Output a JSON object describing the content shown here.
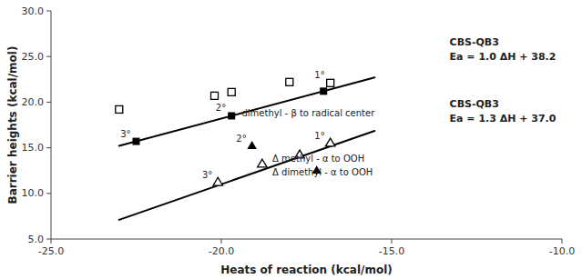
{
  "chart_data": {
    "type": "scatter",
    "xlabel": "Heats of reaction (kcal/mol)",
    "ylabel": "Barrier heights (kcal/mol)",
    "xlim": [
      -25.0,
      -10.0
    ],
    "ylim": [
      5.0,
      30.0
    ],
    "xticks": [
      {
        "value": -25.0,
        "label": "-25.0"
      },
      {
        "value": -20.0,
        "label": "-20.0"
      },
      {
        "value": -15.0,
        "label": "-15.0"
      },
      {
        "value": -10.0,
        "label": "-10.0"
      }
    ],
    "yticks": [
      {
        "value": 5.0,
        "label": "5.0"
      },
      {
        "value": 10.0,
        "label": "10.0"
      },
      {
        "value": 15.0,
        "label": "15.0"
      },
      {
        "value": 20.0,
        "label": "20.0"
      },
      {
        "value": 25.0,
        "label": "25.0"
      },
      {
        "value": 30.0,
        "label": "30.0"
      }
    ],
    "grid": false,
    "series": [
      {
        "type": "line",
        "color": "black",
        "line_style": "solid",
        "x": [
          -23.0,
          -15.5
        ],
        "values": [
          15.2,
          22.7
        ]
      },
      {
        "type": "line",
        "color": "black",
        "line_style": "solid",
        "x": [
          -23.0,
          -15.5
        ],
        "values": [
          7.1,
          16.85
        ]
      },
      {
        "type": "scatter",
        "marker": "square",
        "color": "black",
        "x": [
          -22.5,
          -19.7,
          -17.0
        ],
        "values": [
          15.7,
          18.5,
          21.2
        ],
        "point_labels": [
          "3°",
          "2°",
          null
        ]
      },
      {
        "type": "scatter",
        "marker": "square-open",
        "color": "black",
        "x": [
          -23.0,
          -20.2,
          -19.7,
          -18.0,
          -16.8
        ],
        "values": [
          19.2,
          20.7,
          21.1,
          22.2,
          22.1
        ],
        "point_labels": [
          null,
          null,
          null,
          null,
          "1°"
        ]
      },
      {
        "type": "scatter",
        "marker": "triangle",
        "color": "black",
        "x": [
          -19.1,
          -17.2
        ],
        "values": [
          15.2,
          12.5
        ],
        "point_labels": [
          "2°",
          null
        ]
      },
      {
        "type": "scatter",
        "marker": "triangle-open",
        "color": "black",
        "x": [
          -20.1,
          -18.8,
          -17.7,
          -16.8
        ],
        "values": [
          11.2,
          13.2,
          14.2,
          15.5
        ],
        "point_labels": [
          "3°",
          null,
          null,
          "1°"
        ]
      }
    ],
    "annotations": [
      {
        "text": "dimethyl - β to radical center",
        "x": -19.4,
        "y": 18.8
      },
      {
        "text": "Δ methyl - α to OOH",
        "x": -18.5,
        "y": 13.8
      },
      {
        "text": "Δ dimethyl - α to OOH",
        "x": -18.5,
        "y": 12.3
      },
      {
        "lines": [
          "CBS-QB3",
          "Ea = 1.0 ΔH + 38.2"
        ],
        "x": -13.3,
        "y": 25.8
      },
      {
        "lines": [
          "CBS-QB3",
          "Ea = 1.3 ΔH + 37.0"
        ],
        "x": -13.3,
        "y": 19.0
      }
    ]
  }
}
